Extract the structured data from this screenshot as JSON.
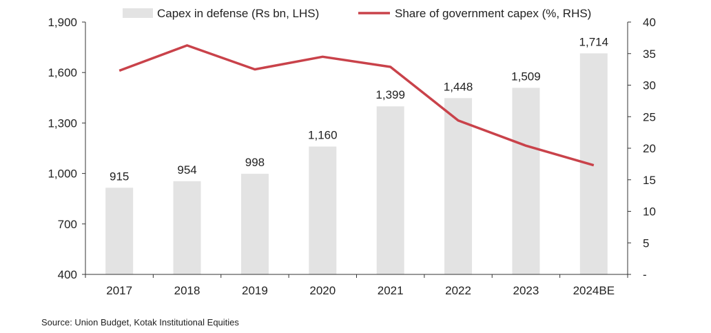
{
  "chart_data": {
    "type": "bar+line",
    "categories": [
      "2017",
      "2018",
      "2019",
      "2020",
      "2021",
      "2022",
      "2023",
      "2024BE"
    ],
    "series": [
      {
        "name": "Capex in defense (Rs bn, LHS)",
        "type": "bar",
        "axis": "left",
        "color": "#e3e3e3",
        "values": [
          915,
          954,
          998,
          1160,
          1399,
          1448,
          1509,
          1714
        ],
        "labels": [
          "915",
          "954",
          "998",
          "1,160",
          "1,399",
          "1,448",
          "1,509",
          "1,714"
        ]
      },
      {
        "name": "Share of government capex (%, RHS)",
        "type": "line",
        "axis": "right",
        "color": "#c9424a",
        "values": [
          32.3,
          36.3,
          32.5,
          34.5,
          32.9,
          24.4,
          20.4,
          17.3
        ]
      }
    ],
    "left_axis": {
      "range": [
        400,
        1900
      ],
      "ticks": [
        400,
        700,
        1000,
        1300,
        1600,
        1900
      ],
      "tick_labels": [
        "400",
        "700",
        "1,000",
        "1,300",
        "1,600",
        "1,900"
      ]
    },
    "right_axis": {
      "range": [
        0,
        40
      ],
      "ticks": [
        0,
        5,
        10,
        15,
        20,
        25,
        30,
        35,
        40
      ],
      "tick_labels": [
        "-",
        "5",
        "10",
        "15",
        "20",
        "25",
        "30",
        "35",
        "40"
      ]
    },
    "legend": "top",
    "grid": false
  },
  "source": "Source: Union Budget, Kotak Institutional Equities"
}
